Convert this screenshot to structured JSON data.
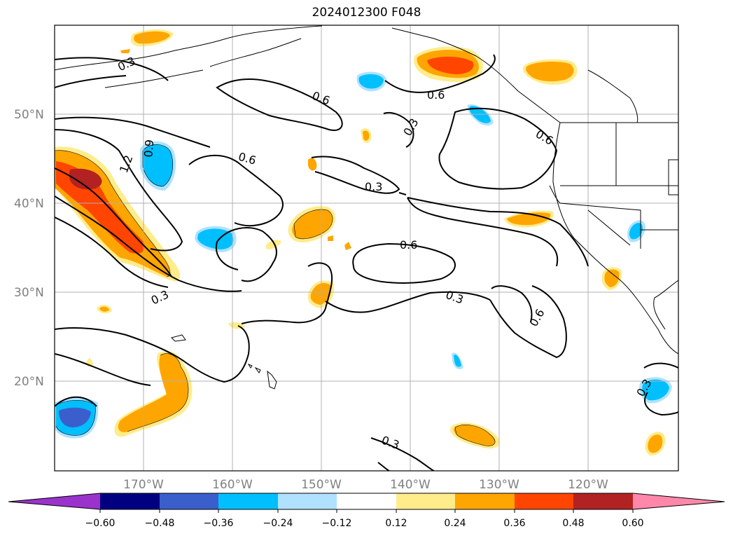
{
  "title": "2024012300 F048",
  "lat_labels": [
    "50°N",
    "40°N",
    "30°N",
    "20°N"
  ],
  "lon_labels": [
    "170°W",
    "160°W",
    "150°W",
    "140°W",
    "130°W",
    "120°W"
  ],
  "colorbar": {
    "ticks": [
      "−0.60",
      "−0.48",
      "−0.36",
      "−0.24",
      "−0.12",
      "0.12",
      "0.24",
      "0.36",
      "0.48",
      "0.60"
    ],
    "colors": [
      "#9933cc",
      "#000080",
      "#3a5fcd",
      "#00bfff",
      "#b0e2ff",
      "#ffffff",
      "#ffec8b",
      "#ffa500",
      "#ff4500",
      "#b22222",
      "#ff88aa"
    ]
  },
  "contour_labels": [
    "0.3",
    "0.6",
    "0.6",
    "0.3",
    "1.2",
    "0.9",
    "0.6",
    "0.3",
    "0.6",
    "0.6",
    "0.3",
    "0.3",
    "0.6",
    "0.3",
    "0.3"
  ]
}
